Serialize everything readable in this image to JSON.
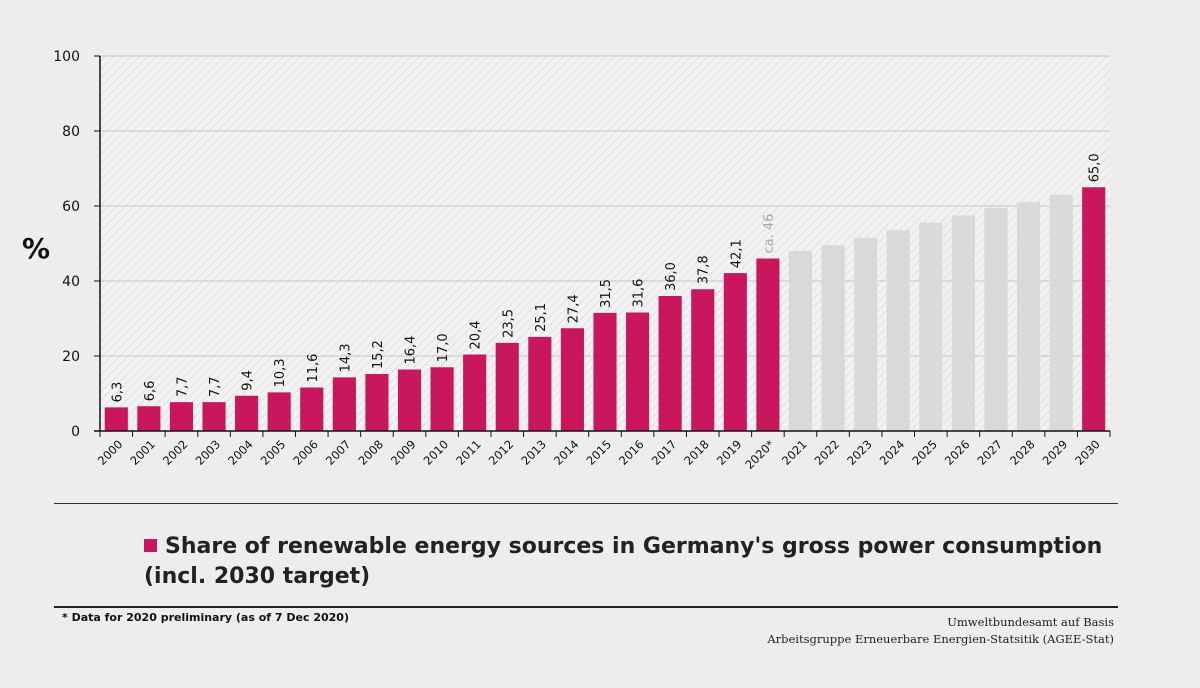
{
  "chart_data": {
    "type": "bar",
    "ylabel": "%",
    "ylim": [
      0,
      100
    ],
    "yticks": [
      0,
      20,
      40,
      60,
      80,
      100
    ],
    "categories": [
      "2000",
      "2001",
      "2002",
      "2003",
      "2004",
      "2005",
      "2006",
      "2007",
      "2008",
      "2009",
      "2010",
      "2011",
      "2012",
      "2013",
      "2014",
      "2015",
      "2016",
      "2017",
      "2018",
      "2019",
      "2020*",
      "2021",
      "2022",
      "2023",
      "2024",
      "2025",
      "2026",
      "2027",
      "2028",
      "2029",
      "2030"
    ],
    "values": [
      6.3,
      6.6,
      7.7,
      7.7,
      9.4,
      10.3,
      11.6,
      14.3,
      15.2,
      16.4,
      17.0,
      20.4,
      23.5,
      25.1,
      27.4,
      31.5,
      31.6,
      36.0,
      37.8,
      42.1,
      46,
      48,
      49.5,
      51.5,
      53.5,
      55.5,
      57.5,
      59.5,
      61,
      63,
      65.0
    ],
    "data_labels": [
      "6,3",
      "6,6",
      "7,7",
      "7,7",
      "9,4",
      "10,3",
      "11,6",
      "14,3",
      "15,2",
      "16,4",
      "17,0",
      "20,4",
      "23,5",
      "25,1",
      "27,4",
      "31,5",
      "31,6",
      "36,0",
      "37,8",
      "42,1",
      "ca. 46",
      "",
      "",
      "",
      "",
      "",
      "",
      "",
      "",
      "",
      "65,0"
    ],
    "bar_status": [
      "actual",
      "actual",
      "actual",
      "actual",
      "actual",
      "actual",
      "actual",
      "actual",
      "actual",
      "actual",
      "actual",
      "actual",
      "actual",
      "actual",
      "actual",
      "actual",
      "actual",
      "actual",
      "actual",
      "actual",
      "actual",
      "trajectory",
      "trajectory",
      "trajectory",
      "trajectory",
      "trajectory",
      "trajectory",
      "trajectory",
      "trajectory",
      "trajectory",
      "actual"
    ],
    "series": [
      {
        "name": "Share of renewable energy sources in Germany's gross power consumption (incl. 2030 target)"
      }
    ],
    "grid": true,
    "legend_position": "bottom-left",
    "colors": {
      "actual": "#c8175d",
      "trajectory": "#d9d9d9",
      "preliminary_label": "#a8a8a8",
      "background": "#ededed"
    }
  },
  "legend": {
    "label": "Share of renewable energy sources in Germany's gross power consumption (incl. 2030 target)"
  },
  "footnote": "* Data for 2020 preliminary (as of 7 Dec 2020)",
  "source": {
    "line1": "Umweltbundesamt auf Basis",
    "line2": "Arbeitsgruppe Erneuerbare Energien-Statsitik (AGEE-Stat)"
  }
}
